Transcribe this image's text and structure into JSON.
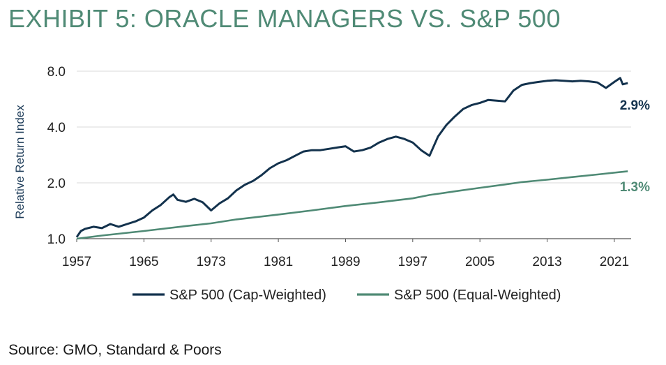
{
  "title": "EXHIBIT 5: ORACLE MANAGERS VS. S&P 500",
  "source": "Source: GMO, Standard & Poors",
  "colors": {
    "cap": "#13324d",
    "equal": "#4f8a75",
    "title": "#4f8a75",
    "grid": "#d9d9d9"
  },
  "chart_data": {
    "type": "line",
    "title": "EXHIBIT 5: ORACLE MANAGERS VS. S&P 500",
    "xlabel": "",
    "ylabel": "Relative Return Index",
    "yscale": "log",
    "xlim": [
      1957,
      2023
    ],
    "ylim": [
      1.0,
      8.0
    ],
    "yticks": [
      1.0,
      2.0,
      4.0,
      8.0
    ],
    "ytick_labels": [
      "1.0",
      "2.0",
      "4.0",
      "8.0"
    ],
    "xticks": [
      1957,
      1965,
      1973,
      1981,
      1989,
      1997,
      2005,
      2013,
      2021
    ],
    "xtick_labels": [
      "1957",
      "1965",
      "1973",
      "1981",
      "1989",
      "1997",
      "2005",
      "2013",
      "2021"
    ],
    "grid": "horizontal",
    "legend": "bottom",
    "series": [
      {
        "name": "S&P 500 (Cap-Weighted)",
        "end_label": "2.9%",
        "x": [
          1957,
          1957.5,
          1958,
          1959,
          1960,
          1961,
          1962,
          1963,
          1964,
          1965,
          1966,
          1967,
          1968,
          1968.5,
          1969,
          1970,
          1971,
          1972,
          1973,
          1974,
          1975,
          1976,
          1977,
          1978,
          1979,
          1980,
          1981,
          1982,
          1983,
          1984,
          1985,
          1986,
          1987,
          1988,
          1989,
          1990,
          1991,
          1992,
          1993,
          1994,
          1995,
          1996,
          1997,
          1998,
          1999,
          2000,
          2001,
          2002,
          2003,
          2004,
          2005,
          2006,
          2007,
          2008,
          2009,
          2010,
          2011,
          2012,
          2013,
          2014,
          2015,
          2016,
          2017,
          2018,
          2019,
          2020,
          2021,
          2021.7,
          2022,
          2022.6
        ],
        "y": [
          1.02,
          1.1,
          1.13,
          1.16,
          1.14,
          1.2,
          1.16,
          1.2,
          1.24,
          1.3,
          1.42,
          1.52,
          1.67,
          1.73,
          1.62,
          1.58,
          1.64,
          1.57,
          1.42,
          1.55,
          1.65,
          1.82,
          1.95,
          2.05,
          2.2,
          2.4,
          2.55,
          2.65,
          2.8,
          2.95,
          3.0,
          3.0,
          3.05,
          3.1,
          3.15,
          2.95,
          3.0,
          3.1,
          3.3,
          3.45,
          3.55,
          3.45,
          3.3,
          3.0,
          2.8,
          3.55,
          4.1,
          4.55,
          5.0,
          5.25,
          5.4,
          5.6,
          5.55,
          5.5,
          6.3,
          6.75,
          6.9,
          7.0,
          7.1,
          7.15,
          7.1,
          7.05,
          7.1,
          7.05,
          6.95,
          6.5,
          7.0,
          7.35,
          6.8,
          6.9
        ]
      },
      {
        "name": "S&P 500 (Equal-Weighted)",
        "end_label": "1.3%",
        "x": [
          1957,
          1960,
          1965,
          1970,
          1973,
          1976,
          1981,
          1985,
          1989,
          1993,
          1997,
          1999,
          2002,
          2005,
          2008,
          2010,
          2013,
          2016,
          2019,
          2022.6
        ],
        "y": [
          1.0,
          1.04,
          1.1,
          1.17,
          1.21,
          1.27,
          1.35,
          1.42,
          1.5,
          1.57,
          1.65,
          1.72,
          1.8,
          1.88,
          1.96,
          2.02,
          2.08,
          2.15,
          2.22,
          2.31
        ]
      }
    ]
  }
}
